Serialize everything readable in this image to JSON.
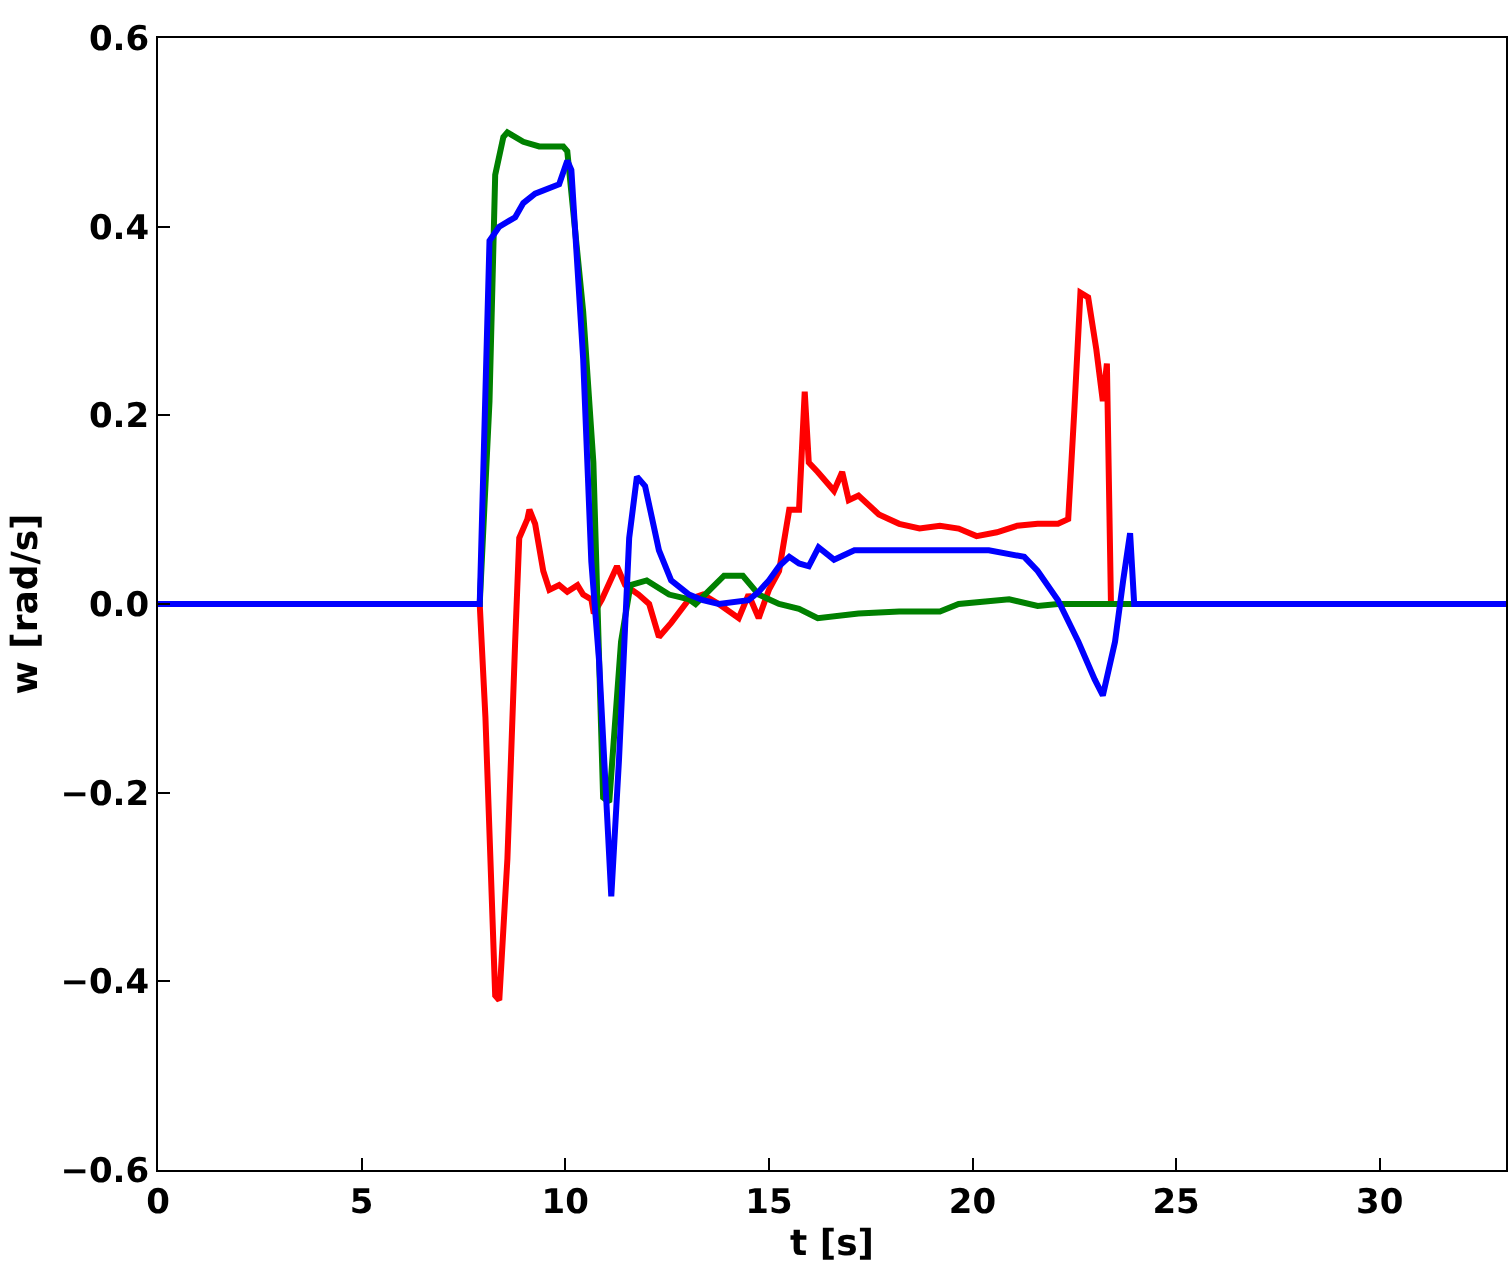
{
  "chart_data": {
    "type": "line",
    "xlabel": "t [s]",
    "ylabel": "w [rad/s]",
    "xlim": [
      0,
      33.1
    ],
    "xticks": [
      0,
      5,
      10,
      15,
      20,
      25,
      30
    ],
    "ylim": [
      -0.6,
      0.6
    ],
    "yticks": [
      {
        "value": -0.6,
        "label": "−0.6"
      },
      {
        "value": -0.4,
        "label": "−0.4"
      },
      {
        "value": -0.2,
        "label": "−0.2"
      },
      {
        "value": 0,
        "label": "0.0"
      },
      {
        "value": 0.2,
        "label": "0.2"
      },
      {
        "value": 0.4,
        "label": "0.4"
      },
      {
        "value": 0.6,
        "label": "0.6"
      }
    ],
    "marker": "none",
    "line_style": "solid",
    "series": [
      {
        "color": "#ff0000",
        "x": [
          0,
          7.9,
          8.04,
          8.28,
          8.38,
          8.58,
          8.77,
          8.87,
          9.07,
          9.12,
          9.26,
          9.46,
          9.61,
          9.85,
          10.05,
          10.3,
          10.44,
          10.64,
          10.7,
          10.9,
          11.27,
          11.47,
          11.8,
          12.06,
          12.3,
          12.6,
          13.04,
          13.38,
          13.77,
          14.26,
          14.5,
          14.75,
          15.0,
          15.25,
          15.5,
          15.74,
          15.88,
          15.98,
          16.2,
          16.6,
          16.8,
          16.96,
          17.2,
          17.7,
          18.2,
          18.7,
          19.2,
          19.66,
          20.1,
          20.6,
          21.1,
          21.6,
          22.1,
          22.35,
          22.5,
          22.65,
          22.84,
          23.04,
          23.2,
          23.3,
          23.4,
          33.1
        ],
        "values": [
          0,
          0,
          -0.12,
          -0.415,
          -0.42,
          -0.27,
          -0.04,
          0.07,
          0.09,
          0.1,
          0.085,
          0.035,
          0.015,
          0.02,
          0.013,
          0.02,
          0.01,
          0.005,
          -0.01,
          0.005,
          0.04,
          0.02,
          0.01,
          0,
          -0.035,
          -0.02,
          0.005,
          0.01,
          0,
          -0.015,
          0.01,
          -0.015,
          0.015,
          0.035,
          0.1,
          0.1,
          0.225,
          0.15,
          0.14,
          0.12,
          0.14,
          0.11,
          0.115,
          0.095,
          0.085,
          0.08,
          0.083,
          0.08,
          0.072,
          0.076,
          0.083,
          0.085,
          0.085,
          0.09,
          0.205,
          0.33,
          0.325,
          0.27,
          0.215,
          0.255,
          0,
          0
        ]
      },
      {
        "color": "#008000",
        "x": [
          0,
          7.9,
          8.14,
          8.28,
          8.48,
          8.58,
          8.97,
          9.36,
          9.95,
          10.05,
          10.44,
          10.69,
          10.93,
          11.08,
          11.37,
          11.6,
          12.0,
          12.55,
          13.04,
          13.2,
          13.9,
          14.36,
          14.75,
          15.25,
          15.74,
          16.2,
          17.2,
          18.2,
          19.2,
          19.66,
          20.9,
          21.6,
          22.1,
          33.1
        ],
        "values": [
          0,
          0,
          0.215,
          0.455,
          0.495,
          0.5,
          0.49,
          0.485,
          0.485,
          0.48,
          0.31,
          0.15,
          -0.205,
          -0.21,
          -0.04,
          0.02,
          0.025,
          0.01,
          0.005,
          0,
          0.03,
          0.03,
          0.01,
          0,
          -0.005,
          -0.015,
          -0.01,
          -0.008,
          -0.008,
          0,
          0.005,
          -0.002,
          0,
          0
        ]
      },
      {
        "color": "#0000ff",
        "x": [
          0,
          7.9,
          8.14,
          8.38,
          8.77,
          8.97,
          9.26,
          9.85,
          10.05,
          10.15,
          10.44,
          10.64,
          10.83,
          11.13,
          11.32,
          11.57,
          11.76,
          11.96,
          12.3,
          12.6,
          13.04,
          13.38,
          13.77,
          14.5,
          14.75,
          15.0,
          15.25,
          15.5,
          15.74,
          15.98,
          16.22,
          16.6,
          17.1,
          20.4,
          21.27,
          21.6,
          22.1,
          22.6,
          23.0,
          23.2,
          23.5,
          23.7,
          23.87,
          23.97,
          33.1
        ],
        "values": [
          0,
          0,
          0.385,
          0.4,
          0.41,
          0.425,
          0.435,
          0.445,
          0.47,
          0.46,
          0.26,
          0.045,
          -0.06,
          -0.31,
          -0.165,
          0.07,
          0.135,
          0.125,
          0.057,
          0.025,
          0.01,
          0.004,
          0,
          0.004,
          0.013,
          0.025,
          0.04,
          0.05,
          0.043,
          0.04,
          0.06,
          0.047,
          0.057,
          0.057,
          0.05,
          0.035,
          0.004,
          -0.04,
          -0.08,
          -0.097,
          -0.04,
          0.025,
          0.075,
          0,
          0
        ]
      }
    ]
  }
}
